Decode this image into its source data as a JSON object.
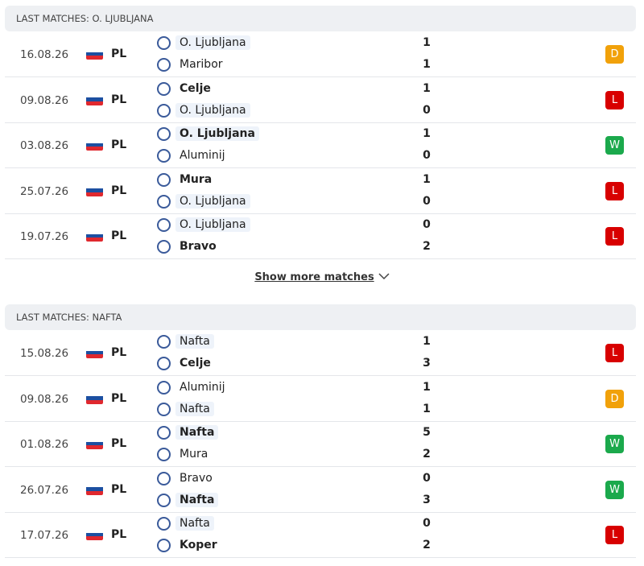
{
  "sections": [
    {
      "title": "LAST MATCHES: O. LJUBLJANA",
      "matches": [
        {
          "date": "16.08.26",
          "league": "PL",
          "home": "O. Ljubljana",
          "away": "Maribor",
          "home_score": 1,
          "away_score": 1,
          "result": "D"
        },
        {
          "date": "09.08.26",
          "league": "PL",
          "home": "Celje",
          "away": "O. Ljubljana",
          "home_score": 1,
          "away_score": 0,
          "result": "L"
        },
        {
          "date": "03.08.26",
          "league": "PL",
          "home": "O. Ljubljana",
          "away": "Aluminij",
          "home_score": 1,
          "away_score": 0,
          "result": "W"
        },
        {
          "date": "25.07.26",
          "league": "PL",
          "home": "Mura",
          "away": "O. Ljubljana",
          "home_score": 1,
          "away_score": 0,
          "result": "L"
        },
        {
          "date": "19.07.26",
          "league": "PL",
          "home": "O. Ljubljana",
          "away": "Bravo",
          "home_score": 0,
          "away_score": 2,
          "result": "L"
        }
      ],
      "show_more": "Show more matches"
    },
    {
      "title": "LAST MATCHES: NAFTA",
      "matches": [
        {
          "date": "15.08.26",
          "league": "PL",
          "home": "Nafta",
          "away": "Celje",
          "home_score": 1,
          "away_score": 3,
          "result": "L"
        },
        {
          "date": "09.08.26",
          "league": "PL",
          "home": "Aluminij",
          "away": "Nafta",
          "home_score": 1,
          "away_score": 1,
          "result": "D"
        },
        {
          "date": "01.08.26",
          "league": "PL",
          "home": "Nafta",
          "away": "Mura",
          "home_score": 5,
          "away_score": 2,
          "result": "W"
        },
        {
          "date": "26.07.26",
          "league": "PL",
          "home": "Bravo",
          "away": "Nafta",
          "home_score": 0,
          "away_score": 3,
          "result": "W"
        },
        {
          "date": "17.07.26",
          "league": "PL",
          "home": "Nafta",
          "away": "Koper",
          "home_score": 0,
          "away_score": 2,
          "result": "L"
        }
      ]
    }
  ]
}
